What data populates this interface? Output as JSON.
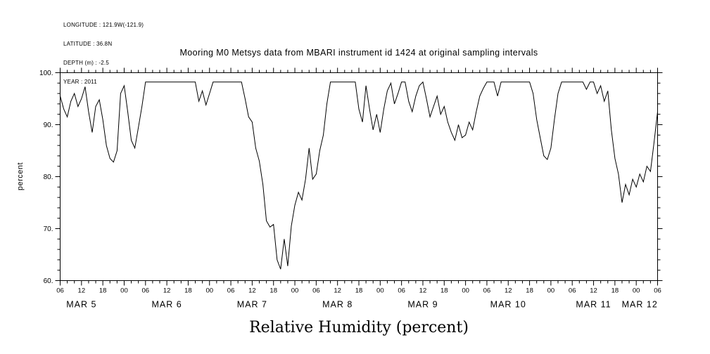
{
  "meta": {
    "lines": [
      "LONGITUDE : 121.9W(-121.9)",
      "LATITUDE : 36.8N",
      "DEPTH (m) : -2.5",
      "YEAR : 2011"
    ]
  },
  "chart_data": {
    "type": "line",
    "title": "Mooring M0 Metsys data from MBARI instrument id 1424 at original sampling intervals",
    "ylabel": "percent",
    "caption": "Relative Humidity (percent)",
    "line_color": "#000000",
    "background": "#ffffff",
    "grid": false,
    "legend": "none",
    "ylim": [
      60,
      100
    ],
    "y_major_step": 10,
    "y_minor_step": 2,
    "yticks": [
      100,
      90,
      80,
      70,
      60
    ],
    "ytick_labels": [
      "100.",
      "90.",
      "80.",
      "70.",
      "60."
    ],
    "x_range_hours": [
      0,
      168
    ],
    "x_major_step_hours": 6,
    "x_minor_step_hours": 2,
    "x_tick_labels": [
      "06",
      "12",
      "18",
      "00",
      "06",
      "12",
      "18",
      "00",
      "06",
      "12",
      "18",
      "00",
      "06",
      "12",
      "18",
      "00",
      "06",
      "12",
      "18",
      "00",
      "06",
      "12",
      "18",
      "00",
      "06",
      "12",
      "18",
      "00",
      "06"
    ],
    "date_labels": [
      {
        "label": "MAR 5",
        "hour": 6
      },
      {
        "label": "MAR 6",
        "hour": 30
      },
      {
        "label": "MAR 7",
        "hour": 54
      },
      {
        "label": "MAR 8",
        "hour": 78
      },
      {
        "label": "MAR 9",
        "hour": 102
      },
      {
        "label": "MAR 10",
        "hour": 126
      },
      {
        "label": "MAR 11",
        "hour": 150
      },
      {
        "label": "MAR 12",
        "hour": 163
      }
    ],
    "x_start_hour": 0,
    "x_step_hours": 1,
    "series": [
      {
        "name": "relative_humidity_percent",
        "values": [
          95.5,
          93.0,
          91.5,
          94.5,
          96.0,
          93.5,
          95.0,
          97.3,
          92.5,
          88.5,
          93.5,
          94.8,
          91.0,
          86.0,
          83.5,
          82.8,
          85.0,
          96.0,
          97.5,
          92.5,
          87.0,
          85.5,
          89.5,
          93.5,
          98.2,
          98.2,
          98.2,
          98.2,
          98.2,
          98.2,
          98.2,
          98.2,
          98.2,
          98.2,
          98.2,
          98.2,
          98.2,
          98.2,
          98.2,
          94.5,
          96.5,
          93.8,
          96.0,
          98.2,
          98.2,
          98.2,
          98.2,
          98.2,
          98.2,
          98.2,
          98.2,
          98.2,
          95.0,
          91.5,
          90.5,
          85.5,
          83.0,
          78.5,
          71.5,
          70.3,
          70.8,
          64.0,
          62.2,
          68.0,
          62.8,
          70.5,
          74.5,
          77.0,
          75.5,
          79.5,
          85.5,
          79.5,
          80.5,
          85.0,
          88.0,
          94.0,
          98.2,
          98.2,
          98.2,
          98.2,
          98.2,
          98.2,
          98.2,
          98.2,
          93.0,
          90.5,
          97.5,
          93.0,
          89.0,
          92.0,
          88.5,
          93.0,
          96.5,
          98.0,
          94.0,
          96.0,
          98.2,
          98.2,
          94.5,
          92.5,
          95.5,
          97.5,
          98.2,
          95.0,
          91.5,
          93.5,
          95.5,
          92.0,
          93.5,
          90.5,
          88.5,
          87.0,
          90.0,
          87.5,
          88.0,
          90.5,
          89.0,
          92.5,
          95.5,
          97.0,
          98.2,
          98.2,
          98.2,
          95.5,
          98.2,
          98.2,
          98.2,
          98.2,
          98.2,
          98.2,
          98.2,
          98.2,
          98.2,
          96.0,
          91.0,
          87.5,
          84.0,
          83.3,
          85.5,
          91.0,
          96.0,
          98.2,
          98.2,
          98.2,
          98.2,
          98.2,
          98.2,
          98.2,
          96.8,
          98.2,
          98.2,
          96.0,
          97.5,
          94.5,
          96.5,
          89.0,
          83.5,
          80.5,
          75.0,
          78.5,
          76.5,
          79.5,
          78.0,
          80.5,
          79.0,
          82.0,
          81.0,
          86.5,
          92.5
        ]
      }
    ]
  }
}
